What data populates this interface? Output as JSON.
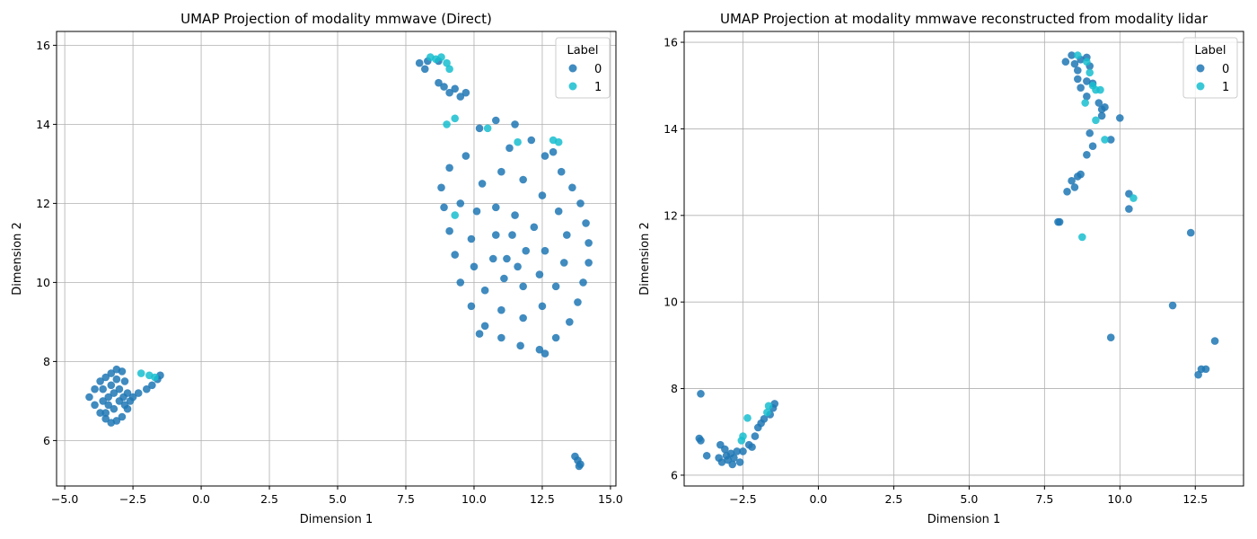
{
  "colors": {
    "label0": "#1f77b4",
    "label1": "#17becf",
    "grid": "#b0b0b0"
  },
  "chart_data": [
    {
      "type": "scatter",
      "title": "UMAP Projection of modality mmwave (Direct)",
      "xlabel": "Dimension 1",
      "ylabel": "Dimension 2",
      "xlim": [
        -5.3,
        15.2
      ],
      "ylim": [
        4.85,
        16.35
      ],
      "xticks": [
        -5.0,
        -2.5,
        0.0,
        2.5,
        5.0,
        7.5,
        10.0,
        12.5,
        15.0
      ],
      "xtick_labels": [
        "−5.0",
        "−2.5",
        "0.0",
        "2.5",
        "5.0",
        "7.5",
        "10.0",
        "12.5",
        "15.0"
      ],
      "yticks": [
        6,
        8,
        10,
        12,
        14,
        16
      ],
      "ytick_labels": [
        "6",
        "8",
        "10",
        "12",
        "14",
        "16"
      ],
      "grid": true,
      "legend": {
        "title": "Label",
        "placement": "upper right",
        "entries": [
          "0",
          "1"
        ]
      },
      "series": [
        {
          "label": "0",
          "color": "#1f77b4",
          "points": [
            [
              -4.1,
              7.1
            ],
            [
              -3.9,
              7.3
            ],
            [
              -3.7,
              7.5
            ],
            [
              -3.5,
              7.6
            ],
            [
              -3.3,
              7.7
            ],
            [
              -3.1,
              7.8
            ],
            [
              -2.9,
              7.75
            ],
            [
              -2.8,
              7.5
            ],
            [
              -2.7,
              7.2
            ],
            [
              -2.6,
              7.0
            ],
            [
              -2.7,
              6.8
            ],
            [
              -2.9,
              6.6
            ],
            [
              -3.1,
              6.5
            ],
            [
              -3.3,
              6.45
            ],
            [
              -3.5,
              6.55
            ],
            [
              -3.7,
              6.7
            ],
            [
              -3.9,
              6.9
            ],
            [
              -3.6,
              7.0
            ],
            [
              -3.4,
              7.1
            ],
            [
              -3.2,
              7.2
            ],
            [
              -3.0,
              7.0
            ],
            [
              -3.2,
              6.8
            ],
            [
              -3.4,
              6.9
            ],
            [
              -3.0,
              7.3
            ],
            [
              -3.3,
              7.4
            ],
            [
              -3.6,
              7.3
            ],
            [
              -2.8,
              6.9
            ],
            [
              -3.5,
              6.7
            ],
            [
              -3.1,
              7.55
            ],
            [
              -2.85,
              7.1
            ],
            [
              -2.5,
              7.1
            ],
            [
              -2.3,
              7.2
            ],
            [
              -2.0,
              7.3
            ],
            [
              -1.8,
              7.4
            ],
            [
              -1.6,
              7.55
            ],
            [
              -1.5,
              7.65
            ],
            [
              8.0,
              15.55
            ],
            [
              8.2,
              15.4
            ],
            [
              8.3,
              15.6
            ],
            [
              8.7,
              15.6
            ],
            [
              8.7,
              15.05
            ],
            [
              8.9,
              14.95
            ],
            [
              9.1,
              14.8
            ],
            [
              9.3,
              14.9
            ],
            [
              9.5,
              14.7
            ],
            [
              9.7,
              14.8
            ],
            [
              13.7,
              5.6
            ],
            [
              13.8,
              5.5
            ],
            [
              13.9,
              5.4
            ],
            [
              13.85,
              5.35
            ],
            [
              9.7,
              13.2
            ],
            [
              10.2,
              13.9
            ],
            [
              10.8,
              14.1
            ],
            [
              11.5,
              14.0
            ],
            [
              12.1,
              13.6
            ],
            [
              12.6,
              13.2
            ],
            [
              13.2,
              12.8
            ],
            [
              13.6,
              12.4
            ],
            [
              13.9,
              12.0
            ],
            [
              14.1,
              11.5
            ],
            [
              14.2,
              11.0
            ],
            [
              14.2,
              10.5
            ],
            [
              14.0,
              10.0
            ],
            [
              13.8,
              9.5
            ],
            [
              13.5,
              9.0
            ],
            [
              13.0,
              8.6
            ],
            [
              12.4,
              8.3
            ],
            [
              11.7,
              8.4
            ],
            [
              11.0,
              8.6
            ],
            [
              10.4,
              8.9
            ],
            [
              9.9,
              9.4
            ],
            [
              9.5,
              10.0
            ],
            [
              9.3,
              10.7
            ],
            [
              9.1,
              11.3
            ],
            [
              8.9,
              11.9
            ],
            [
              8.8,
              12.4
            ],
            [
              9.1,
              12.9
            ],
            [
              10.3,
              12.5
            ],
            [
              11.0,
              12.8
            ],
            [
              11.8,
              12.6
            ],
            [
              12.5,
              12.2
            ],
            [
              13.1,
              11.8
            ],
            [
              13.4,
              11.2
            ],
            [
              13.3,
              10.5
            ],
            [
              13.0,
              9.9
            ],
            [
              12.5,
              9.4
            ],
            [
              11.8,
              9.1
            ],
            [
              11.0,
              9.3
            ],
            [
              10.4,
              9.8
            ],
            [
              10.0,
              10.4
            ],
            [
              9.9,
              11.1
            ],
            [
              10.1,
              11.8
            ],
            [
              10.8,
              11.9
            ],
            [
              11.5,
              11.7
            ],
            [
              12.2,
              11.4
            ],
            [
              12.6,
              10.8
            ],
            [
              12.4,
              10.2
            ],
            [
              11.8,
              9.9
            ],
            [
              11.1,
              10.1
            ],
            [
              10.7,
              10.6
            ],
            [
              10.8,
              11.2
            ],
            [
              11.4,
              11.2
            ],
            [
              11.9,
              10.8
            ],
            [
              11.6,
              10.4
            ],
            [
              11.2,
              10.6
            ],
            [
              12.6,
              8.2
            ],
            [
              10.2,
              8.7
            ],
            [
              11.3,
              13.4
            ],
            [
              12.9,
              13.3
            ],
            [
              9.5,
              12.0
            ]
          ]
        },
        {
          "label": "1",
          "color": "#17becf",
          "points": [
            [
              8.4,
              15.7
            ],
            [
              8.6,
              15.65
            ],
            [
              8.8,
              15.7
            ],
            [
              9.0,
              15.55
            ],
            [
              9.1,
              15.4
            ],
            [
              9.0,
              14.0
            ],
            [
              9.3,
              14.15
            ],
            [
              10.5,
              13.9
            ],
            [
              12.9,
              13.6
            ],
            [
              13.1,
              13.55
            ],
            [
              11.6,
              13.55
            ],
            [
              9.3,
              11.7
            ],
            [
              -2.2,
              7.7
            ],
            [
              -1.9,
              7.65
            ],
            [
              -1.7,
              7.6
            ]
          ]
        }
      ]
    },
    {
      "type": "scatter",
      "title": "UMAP Projection at modality mmwave reconstructed from modality lidar",
      "xlabel": "Dimension 1",
      "ylabel": "Dimension 2",
      "xlim": [
        -4.45,
        14.1
      ],
      "ylim": [
        5.75,
        16.25
      ],
      "xticks": [
        -2.5,
        0.0,
        2.5,
        5.0,
        7.5,
        10.0,
        12.5
      ],
      "xtick_labels": [
        "−2.5",
        "0.0",
        "2.5",
        "5.0",
        "7.5",
        "10.0",
        "12.5"
      ],
      "yticks": [
        6,
        8,
        10,
        12,
        14,
        16
      ],
      "ytick_labels": [
        "6",
        "8",
        "10",
        "12",
        "14",
        "16"
      ],
      "grid": true,
      "legend": {
        "title": "Label",
        "placement": "upper right",
        "entries": [
          "0",
          "1"
        ]
      },
      "series": [
        {
          "label": "0",
          "color": "#1f77b4",
          "points": [
            [
              -3.9,
              7.88
            ],
            [
              -3.95,
              6.85
            ],
            [
              -3.9,
              6.8
            ],
            [
              -3.7,
              6.45
            ],
            [
              -3.3,
              6.4
            ],
            [
              -3.2,
              6.3
            ],
            [
              -3.0,
              6.35
            ],
            [
              -2.9,
              6.5
            ],
            [
              -2.8,
              6.4
            ],
            [
              -2.7,
              6.55
            ],
            [
              -3.1,
              6.6
            ],
            [
              -2.6,
              6.3
            ],
            [
              -3.25,
              6.7
            ],
            [
              -2.5,
              6.55
            ],
            [
              -2.3,
              6.7
            ],
            [
              -2.1,
              6.9
            ],
            [
              -2.0,
              7.1
            ],
            [
              -1.9,
              7.2
            ],
            [
              -1.8,
              7.3
            ],
            [
              -1.6,
              7.4
            ],
            [
              -1.5,
              7.55
            ],
            [
              -1.45,
              7.65
            ],
            [
              -2.2,
              6.65
            ],
            [
              -2.85,
              6.25
            ],
            [
              -3.05,
              6.45
            ],
            [
              8.2,
              15.55
            ],
            [
              8.4,
              15.7
            ],
            [
              8.5,
              15.5
            ],
            [
              8.6,
              15.35
            ],
            [
              8.7,
              15.6
            ],
            [
              8.9,
              15.65
            ],
            [
              9.0,
              15.45
            ],
            [
              8.6,
              15.15
            ],
            [
              8.9,
              15.1
            ],
            [
              9.1,
              15.05
            ],
            [
              8.7,
              14.95
            ],
            [
              8.9,
              14.75
            ],
            [
              9.3,
              14.6
            ],
            [
              9.4,
              14.45
            ],
            [
              9.5,
              14.5
            ],
            [
              9.4,
              14.3
            ],
            [
              10.0,
              14.25
            ],
            [
              9.0,
              13.9
            ],
            [
              9.7,
              13.75
            ],
            [
              9.1,
              13.6
            ],
            [
              8.9,
              13.4
            ],
            [
              8.7,
              12.95
            ],
            [
              8.6,
              12.9
            ],
            [
              8.4,
              12.8
            ],
            [
              8.5,
              12.65
            ],
            [
              8.25,
              12.55
            ],
            [
              10.3,
              12.5
            ],
            [
              10.3,
              12.15
            ],
            [
              7.95,
              11.85
            ],
            [
              8.0,
              11.85
            ],
            [
              12.35,
              11.6
            ],
            [
              11.75,
              9.92
            ],
            [
              9.7,
              9.18
            ],
            [
              13.15,
              9.1
            ],
            [
              12.7,
              8.45
            ],
            [
              12.85,
              8.45
            ],
            [
              12.6,
              8.32
            ]
          ]
        },
        {
          "label": "1",
          "color": "#17becf",
          "points": [
            [
              8.6,
              15.7
            ],
            [
              8.9,
              15.55
            ],
            [
              9.0,
              15.3
            ],
            [
              9.1,
              15.0
            ],
            [
              9.2,
              14.9
            ],
            [
              9.35,
              14.9
            ],
            [
              8.85,
              14.6
            ],
            [
              9.2,
              14.2
            ],
            [
              9.5,
              13.75
            ],
            [
              10.45,
              12.4
            ],
            [
              8.75,
              11.5
            ],
            [
              -2.35,
              7.32
            ],
            [
              -1.7,
              7.45
            ],
            [
              -1.65,
              7.6
            ],
            [
              -2.5,
              6.9
            ],
            [
              -2.55,
              6.8
            ]
          ]
        }
      ]
    }
  ]
}
